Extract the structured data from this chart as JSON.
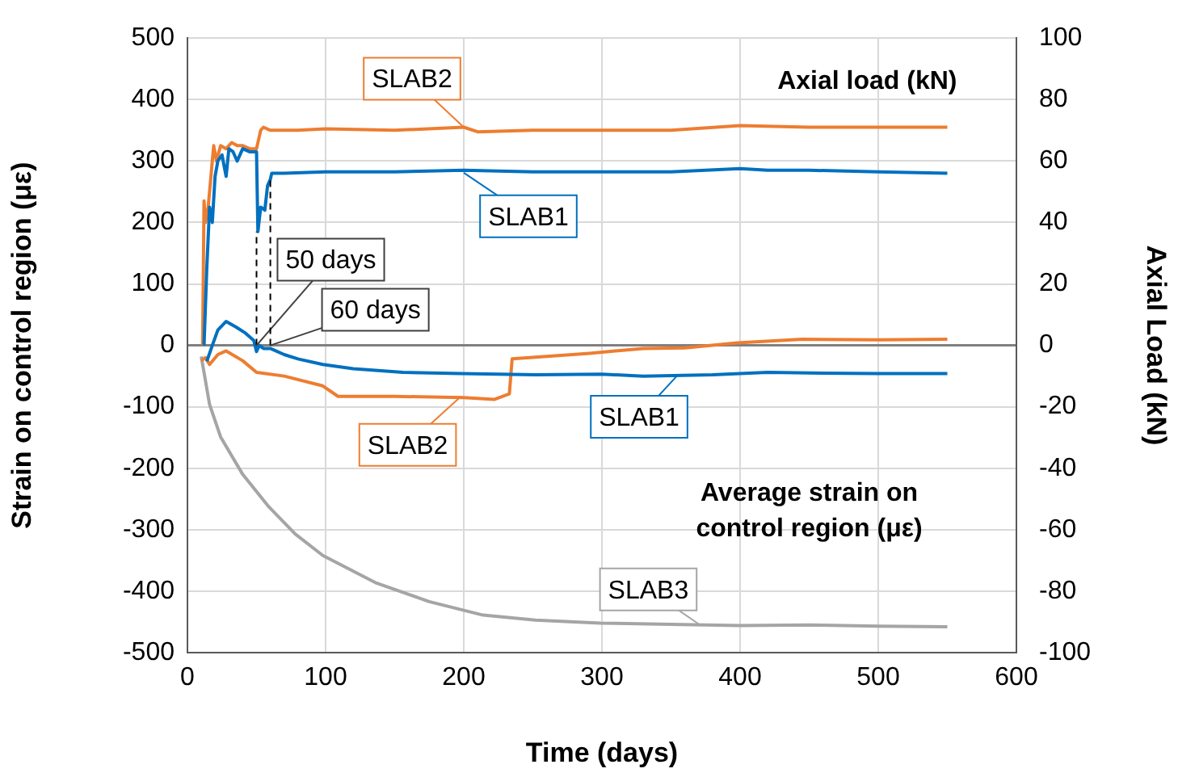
{
  "chart_data": {
    "type": "line",
    "xlabel": "Time (days)",
    "ylabel": "Strain on control region (με)",
    "y2label": "Axial Load (kN)",
    "xlim": [
      0,
      600
    ],
    "xticks": [
      0,
      100,
      200,
      300,
      400,
      500,
      600
    ],
    "ylim": [
      -500,
      500
    ],
    "yticks": [
      -500,
      -400,
      -300,
      -200,
      -100,
      0,
      100,
      200,
      300,
      400,
      500
    ],
    "y2lim": [
      -100,
      100
    ],
    "y2ticks": [
      -100,
      -80,
      -60,
      -40,
      -20,
      0,
      20,
      40,
      60,
      80,
      100
    ],
    "grid": true,
    "legend": false,
    "marker": "none",
    "series": [
      {
        "axis": "y2",
        "color": "#0070c0",
        "x": [
          12,
          14,
          16,
          18,
          20,
          22,
          25,
          28,
          30,
          33,
          36,
          40,
          45,
          50,
          51,
          53,
          56,
          58,
          60,
          61,
          70,
          100,
          150,
          200,
          250,
          300,
          350,
          400,
          420,
          450,
          500,
          550
        ],
        "values": [
          0,
          25,
          45,
          40,
          55,
          60,
          62,
          55,
          64,
          63,
          60,
          64,
          63,
          63,
          37,
          45,
          44,
          52,
          54,
          56,
          56,
          56.5,
          56.5,
          57,
          56.5,
          56.5,
          56.5,
          57.5,
          57,
          57,
          56.5,
          56
        ]
      },
      {
        "axis": "y2",
        "color": "#ed7d31",
        "x": [
          11,
          12,
          13,
          15,
          17,
          19,
          21,
          24,
          28,
          32,
          36,
          40,
          45,
          50,
          53,
          55,
          60,
          80,
          100,
          150,
          200,
          210,
          250,
          300,
          350,
          400,
          450,
          500,
          550
        ],
        "values": [
          0,
          47,
          40,
          45,
          55,
          65,
          60,
          65,
          64,
          66,
          65,
          65,
          64,
          64,
          70,
          71,
          70,
          70,
          70.5,
          70,
          71,
          69.5,
          70,
          70,
          70,
          71.5,
          71,
          71,
          71
        ]
      },
      {
        "color": "#0070c0",
        "x": [
          14,
          18,
          22,
          28,
          35,
          42,
          48,
          50,
          52,
          55,
          60,
          70,
          80,
          98,
          120,
          156,
          198,
          252,
          300,
          330,
          380,
          420,
          450,
          500,
          550
        ],
        "values": [
          -26,
          0,
          25,
          39,
          30,
          20,
          8,
          -10,
          0,
          -5,
          -5,
          -15,
          -22,
          -31,
          -38,
          -44,
          -46,
          -48,
          -47,
          -50,
          -48,
          -44,
          -45,
          -46,
          -46
        ]
      },
      {
        "color": "#ed7d31",
        "x": [
          10,
          13,
          16,
          22,
          28,
          40,
          50,
          70,
          98,
          109,
          150,
          200,
          222,
          233,
          235,
          260,
          291,
          330,
          360,
          398,
          445,
          500,
          550
        ],
        "values": [
          -25,
          -20,
          -31,
          -15,
          -9,
          -25,
          -44,
          -50,
          -66,
          -83,
          -83,
          -85,
          -88,
          -79,
          -22,
          -18,
          -13,
          -5,
          -4,
          4,
          10,
          9,
          10
        ]
      },
      {
        "color": "#a5a5a5",
        "x": [
          10,
          12,
          16,
          24,
          40,
          59,
          78,
          98,
          136,
          175,
          214,
          252,
          299,
          350,
          400,
          450,
          500,
          550
        ],
        "values": [
          -18,
          -44,
          -96,
          -149,
          -210,
          -263,
          -307,
          -342,
          -386,
          -417,
          -439,
          -447,
          -452,
          -454,
          -456,
          -455,
          -457,
          -458
        ]
      }
    ],
    "ref_lines": [
      {
        "axis": "x",
        "value": 50,
        "label": "50 days",
        "line_style": "dashed",
        "color": "#000000"
      },
      {
        "axis": "x",
        "value": 60,
        "label": "60 days",
        "line_style": "dashed",
        "color": "#000000"
      }
    ],
    "annotations": [
      {
        "text": "SLAB2",
        "x": 200,
        "y": 355
      },
      {
        "text": "SLAB1",
        "x": 200,
        "y": 281
      },
      {
        "text": "SLAB2",
        "x": 198,
        "y": -83
      },
      {
        "text": "SLAB1",
        "x": 355,
        "y": -48
      },
      {
        "text": "SLAB3",
        "x": 371,
        "y": -455
      },
      "Axial load (kN)",
      "Average strain on control region (με)"
    ]
  }
}
